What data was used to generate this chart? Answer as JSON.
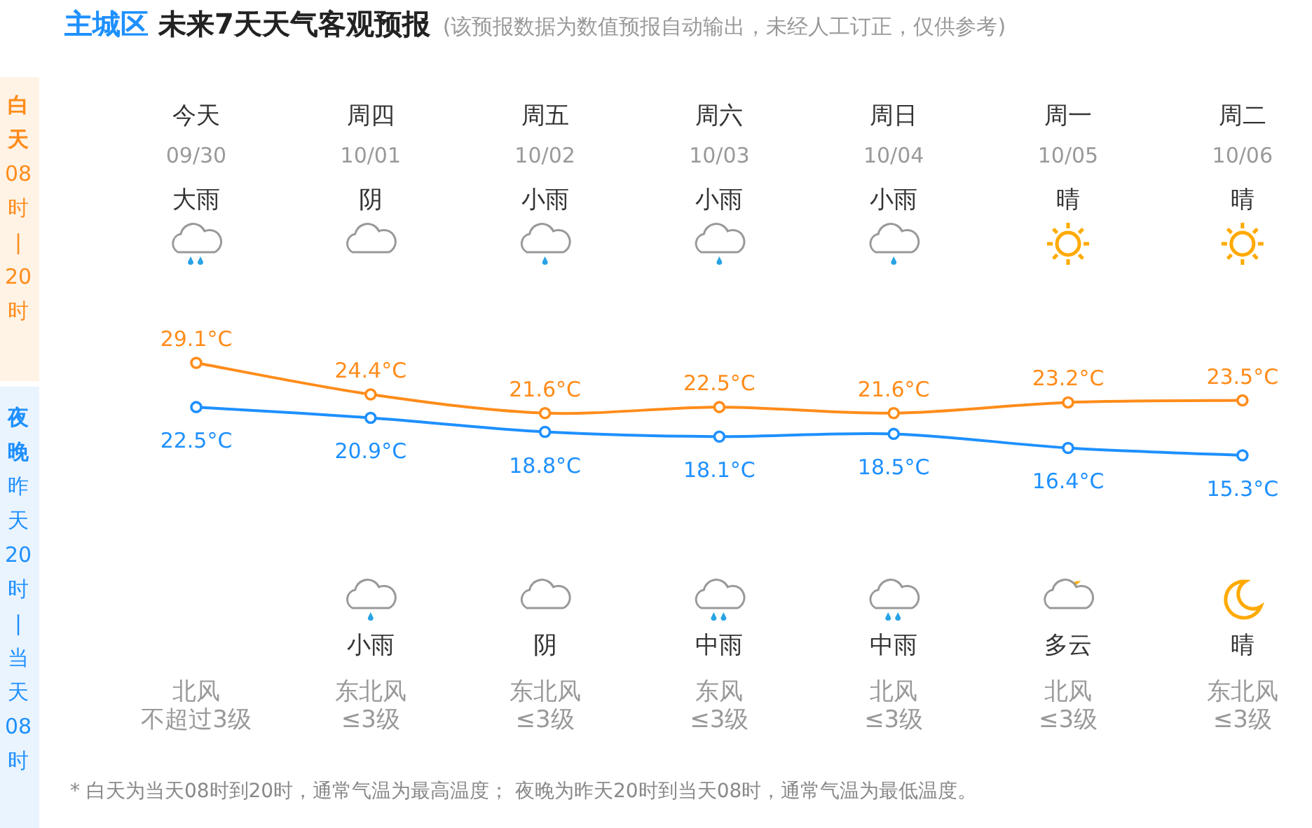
{
  "chart_data": {
    "type": "line",
    "title": "主城区 未来7天天气客观预报",
    "subtitle": "(该预报数据为数值预报自动输出，未经人工订正，仅供参考)",
    "categories": [
      "今天",
      "周四",
      "周五",
      "周六",
      "周日",
      "周一",
      "周二"
    ],
    "marker": "circle",
    "line_style": "solid",
    "series": [
      {
        "color": "#ff8c1a",
        "values": [
          29.1,
          24.4,
          21.6,
          22.5,
          21.6,
          23.2,
          23.5
        ],
        "value_labels": [
          "29.1°C",
          "24.4°C",
          "21.6°C",
          "22.5°C",
          "21.6°C",
          "23.2°C",
          "23.5°C"
        ]
      },
      {
        "color": "#1e90ff",
        "values": [
          22.5,
          20.9,
          18.8,
          18.1,
          18.5,
          16.4,
          15.3
        ],
        "value_labels": [
          "22.5°C",
          "20.9°C",
          "18.8°C",
          "18.1°C",
          "18.5°C",
          "16.4°C",
          "15.3°C"
        ]
      }
    ],
    "annotations": [
      "白天",
      "08时|20时",
      "夜晚",
      "昨天20时|当天08时",
      "* 白天为当天08时到20时，通常气温为最高温度； 夜晚为昨天20时到当天08时，通常气温为最低温度。",
      "09/30",
      "10/01",
      "10/02",
      "10/03",
      "10/04",
      "10/05",
      "10/06",
      "大雨",
      "阴",
      "小雨",
      "小雨",
      "小雨",
      "晴",
      "晴",
      "小雨",
      "阴",
      "中雨",
      "中雨",
      "多云",
      "晴",
      "北风",
      "东北风",
      "东北风",
      "东风",
      "北风",
      "北风",
      "东北风",
      "不超过3级",
      "≤3级",
      "≤3级",
      "≤3级",
      "≤3级",
      "≤3级",
      "≤3级"
    ]
  }
}
